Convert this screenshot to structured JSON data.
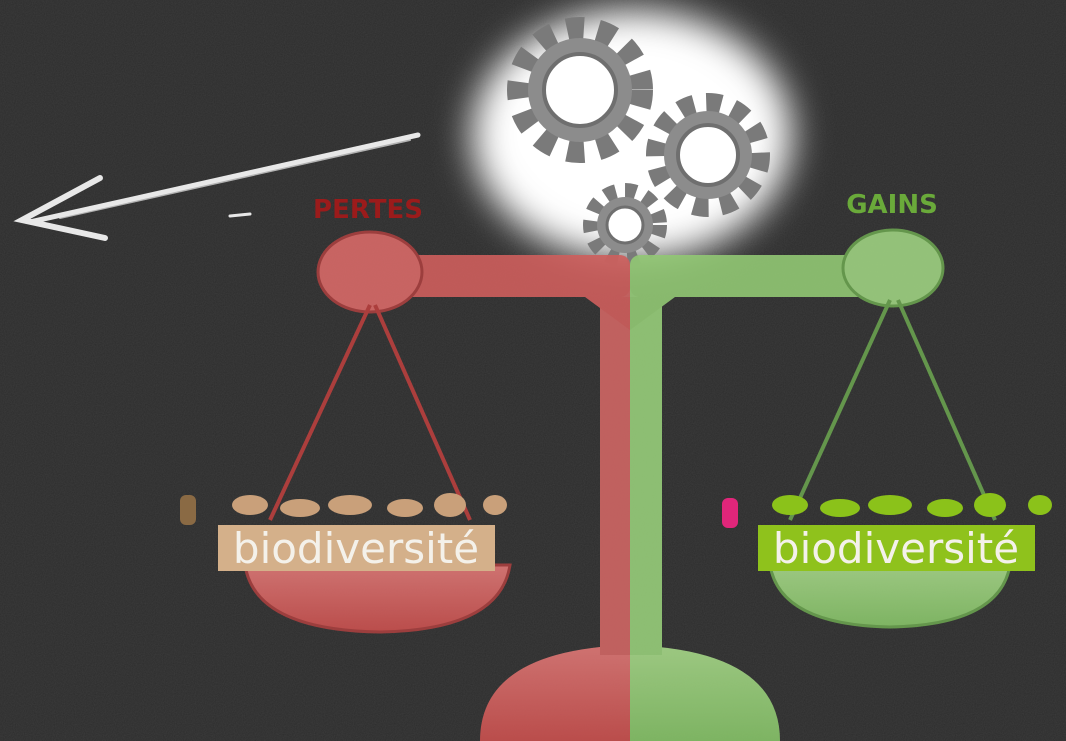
{
  "left_pan": {
    "heading": "PERTES",
    "label": "biodiversité"
  },
  "right_pan": {
    "heading": "GAINS",
    "label": "biodiversité"
  }
}
